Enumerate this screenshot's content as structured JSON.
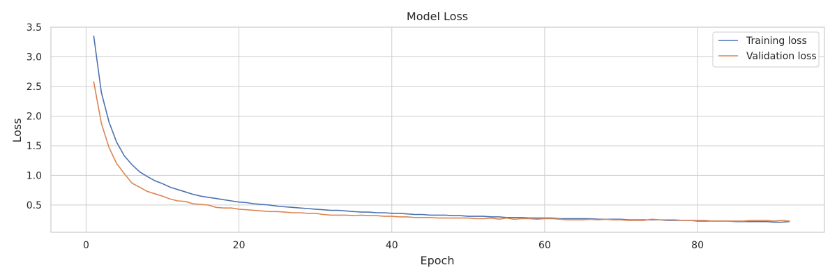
{
  "chart_data": {
    "type": "line",
    "title": "Model Loss",
    "xlabel": "Epoch",
    "ylabel": "Loss",
    "xlim": [
      -4.6,
      96.6
    ],
    "ylim": [
      0.04,
      3.5
    ],
    "x_ticks": [
      0,
      20,
      40,
      60,
      80
    ],
    "y_ticks": [
      0.5,
      1.0,
      1.5,
      2.0,
      2.5,
      3.0,
      3.5
    ],
    "y_tick_labels": [
      "0.5",
      "1.0",
      "1.5",
      "2.0",
      "2.5",
      "3.0",
      "3.5"
    ],
    "grid": true,
    "legend_position": "top-right",
    "x": [
      1,
      2,
      3,
      4,
      5,
      6,
      7,
      8,
      9,
      10,
      11,
      12,
      13,
      14,
      15,
      16,
      17,
      18,
      19,
      20,
      21,
      22,
      23,
      24,
      25,
      26,
      27,
      28,
      29,
      30,
      31,
      32,
      33,
      34,
      35,
      36,
      37,
      38,
      39,
      40,
      41,
      42,
      43,
      44,
      45,
      46,
      47,
      48,
      49,
      50,
      51,
      52,
      53,
      54,
      55,
      56,
      57,
      58,
      59,
      60,
      61,
      62,
      63,
      64,
      65,
      66,
      67,
      68,
      69,
      70,
      71,
      72,
      73,
      74,
      75,
      76,
      77,
      78,
      79,
      80,
      81,
      82,
      83,
      84,
      85,
      86,
      87,
      88,
      89,
      90,
      91,
      92
    ],
    "series": [
      {
        "name": "Training loss",
        "color": "#4c72b0",
        "values": [
          3.35,
          2.4,
          1.9,
          1.56,
          1.33,
          1.18,
          1.06,
          0.98,
          0.91,
          0.86,
          0.8,
          0.76,
          0.72,
          0.68,
          0.65,
          0.63,
          0.61,
          0.59,
          0.57,
          0.55,
          0.54,
          0.52,
          0.51,
          0.5,
          0.48,
          0.47,
          0.46,
          0.45,
          0.44,
          0.43,
          0.42,
          0.41,
          0.41,
          0.4,
          0.39,
          0.38,
          0.38,
          0.37,
          0.37,
          0.36,
          0.36,
          0.35,
          0.34,
          0.34,
          0.33,
          0.33,
          0.33,
          0.32,
          0.32,
          0.31,
          0.31,
          0.31,
          0.3,
          0.3,
          0.29,
          0.29,
          0.29,
          0.28,
          0.28,
          0.28,
          0.28,
          0.27,
          0.27,
          0.27,
          0.27,
          0.27,
          0.26,
          0.26,
          0.26,
          0.26,
          0.25,
          0.25,
          0.25,
          0.25,
          0.25,
          0.24,
          0.24,
          0.24,
          0.24,
          0.23,
          0.23,
          0.23,
          0.23,
          0.23,
          0.22,
          0.22,
          0.22,
          0.22,
          0.22,
          0.21,
          0.21,
          0.22
        ]
      },
      {
        "name": "Validation loss",
        "color": "#dd8452",
        "values": [
          2.58,
          1.88,
          1.47,
          1.2,
          1.03,
          0.87,
          0.8,
          0.73,
          0.69,
          0.65,
          0.6,
          0.57,
          0.56,
          0.52,
          0.51,
          0.5,
          0.46,
          0.45,
          0.45,
          0.43,
          0.42,
          0.41,
          0.4,
          0.39,
          0.39,
          0.38,
          0.37,
          0.37,
          0.36,
          0.36,
          0.34,
          0.33,
          0.33,
          0.33,
          0.32,
          0.33,
          0.32,
          0.32,
          0.31,
          0.31,
          0.3,
          0.3,
          0.29,
          0.29,
          0.29,
          0.28,
          0.28,
          0.28,
          0.28,
          0.28,
          0.27,
          0.27,
          0.28,
          0.26,
          0.28,
          0.26,
          0.27,
          0.27,
          0.26,
          0.27,
          0.27,
          0.26,
          0.25,
          0.25,
          0.25,
          0.26,
          0.25,
          0.26,
          0.25,
          0.25,
          0.24,
          0.24,
          0.24,
          0.26,
          0.25,
          0.25,
          0.25,
          0.24,
          0.24,
          0.24,
          0.24,
          0.23,
          0.23,
          0.23,
          0.23,
          0.23,
          0.24,
          0.24,
          0.24,
          0.23,
          0.24,
          0.23
        ]
      }
    ]
  }
}
